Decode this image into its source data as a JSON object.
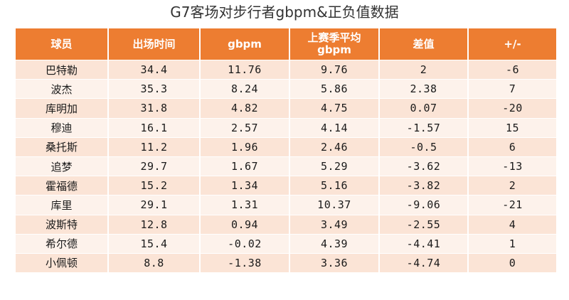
{
  "title": "G7客场对步行者gbpm&正负值数据",
  "columns": [
    "球员",
    "出场时间",
    "gbpm",
    "上赛季平均\ngbpm",
    "差值",
    "+/-"
  ],
  "rows": [
    {
      "player": "巴特勒",
      "minutes": "34.4",
      "gbpm": "11.76",
      "last_season_gbpm": "9.76",
      "diff": "2",
      "plus_minus": "-6"
    },
    {
      "player": "波杰",
      "minutes": "35.3",
      "gbpm": "8.24",
      "last_season_gbpm": "5.86",
      "diff": "2.38",
      "plus_minus": "7"
    },
    {
      "player": "库明加",
      "minutes": "31.8",
      "gbpm": "4.82",
      "last_season_gbpm": "4.75",
      "diff": "0.07",
      "plus_minus": "-20"
    },
    {
      "player": "穆迪",
      "minutes": "16.1",
      "gbpm": "2.57",
      "last_season_gbpm": "4.14",
      "diff": "-1.57",
      "plus_minus": "15"
    },
    {
      "player": "桑托斯",
      "minutes": "11.2",
      "gbpm": "1.96",
      "last_season_gbpm": "2.46",
      "diff": "-0.5",
      "plus_minus": "6"
    },
    {
      "player": "追梦",
      "minutes": "29.7",
      "gbpm": "1.67",
      "last_season_gbpm": "5.29",
      "diff": "-3.62",
      "plus_minus": "-13"
    },
    {
      "player": "霍福德",
      "minutes": "15.2",
      "gbpm": "1.34",
      "last_season_gbpm": "5.16",
      "diff": "-3.82",
      "plus_minus": "2"
    },
    {
      "player": "库里",
      "minutes": "29.1",
      "gbpm": "1.31",
      "last_season_gbpm": "10.37",
      "diff": "-9.06",
      "plus_minus": "-21"
    },
    {
      "player": "波斯特",
      "minutes": "12.8",
      "gbpm": "0.94",
      "last_season_gbpm": "3.49",
      "diff": "-2.55",
      "plus_minus": "4"
    },
    {
      "player": "希尔德",
      "minutes": "15.4",
      "gbpm": "-0.02",
      "last_season_gbpm": "4.39",
      "diff": "-4.41",
      "plus_minus": "1"
    },
    {
      "player": "小佩顿",
      "minutes": "8.8",
      "gbpm": "-1.38",
      "last_season_gbpm": "3.36",
      "diff": "-4.74",
      "plus_minus": "0"
    }
  ],
  "colors": {
    "header": "#ed7d31",
    "row_odd": "#fbe4d6",
    "row_even": "#fdf2eb",
    "positive_diff": "#e02020",
    "negative_diff": "#1fae4d"
  },
  "chart_data": {
    "type": "table",
    "title": "G7客场对步行者gbpm&正负值数据",
    "columns": [
      "球员",
      "出场时间",
      "gbpm",
      "上赛季平均 gbpm",
      "差值",
      "+/-"
    ],
    "rows": [
      [
        "巴特勒",
        34.4,
        11.76,
        9.76,
        2,
        -6
      ],
      [
        "波杰",
        35.3,
        8.24,
        5.86,
        2.38,
        7
      ],
      [
        "库明加",
        31.8,
        4.82,
        4.75,
        0.07,
        -20
      ],
      [
        "穆迪",
        16.1,
        2.57,
        4.14,
        -1.57,
        15
      ],
      [
        "桑托斯",
        11.2,
        1.96,
        2.46,
        -0.5,
        6
      ],
      [
        "追梦",
        29.7,
        1.67,
        5.29,
        -3.62,
        -13
      ],
      [
        "霍福德",
        15.2,
        1.34,
        5.16,
        -3.82,
        2
      ],
      [
        "库里",
        29.1,
        1.31,
        10.37,
        -9.06,
        -21
      ],
      [
        "波斯特",
        12.8,
        0.94,
        3.49,
        -2.55,
        4
      ],
      [
        "希尔德",
        15.4,
        -0.02,
        4.39,
        -4.41,
        1
      ],
      [
        "小佩顿",
        8.8,
        -1.38,
        3.36,
        -4.74,
        0
      ]
    ]
  }
}
